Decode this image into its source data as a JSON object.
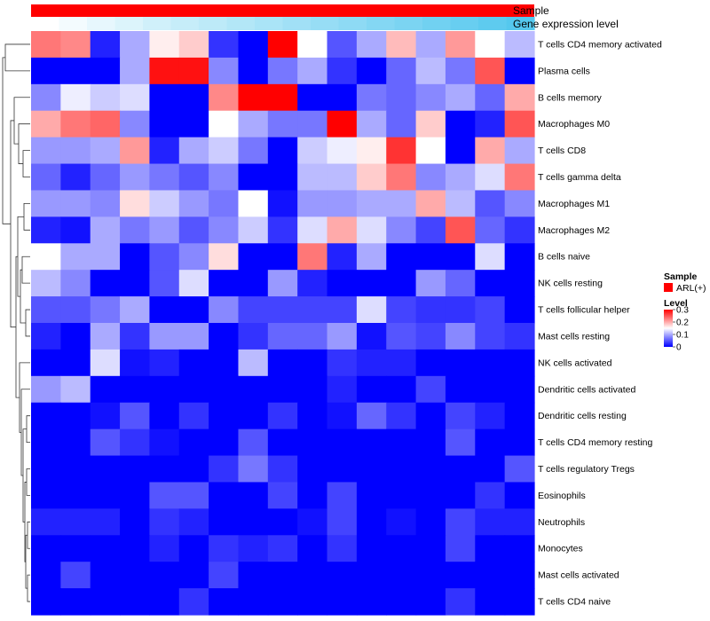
{
  "chart_data": {
    "type": "heatmap",
    "title": "",
    "annotations": [
      {
        "name": "Sample",
        "label": "Sample"
      },
      {
        "name": "Gene expression level",
        "label": "Gene expression level"
      }
    ],
    "sample_groups": [
      "ARL(+)"
    ],
    "sample_colors": [
      "#ff0000"
    ],
    "gene_expression_levels": [
      0.0,
      0.05,
      0.1,
      0.15,
      0.2,
      0.24,
      0.28,
      0.32,
      0.36,
      0.4,
      0.44,
      0.48,
      0.52,
      0.56,
      0.6,
      0.64,
      0.68,
      0.72
    ],
    "rows": [
      "T cells CD4 memory activated",
      "Plasma cells",
      "B cells memory",
      "Macrophages M0",
      "T cells CD8",
      "T cells gamma delta",
      "Macrophages M1",
      "Macrophages M2",
      "B cells naive",
      "NK cells resting",
      "T cells follicular helper",
      "Mast cells resting",
      "NK cells activated",
      "Dendritic cells activated",
      "Dendritic cells resting",
      "T cells CD4 memory resting",
      "T cells regulatory  Tregs",
      "Eosinophils",
      "Neutrophils",
      "Monocytes",
      "Mast cells activated",
      "T cells CD4 naive"
    ],
    "values": [
      [
        0.23,
        0.22,
        0.02,
        0.1,
        0.16,
        0.18,
        0.03,
        0.0,
        0.3,
        0.15,
        0.05,
        0.1,
        0.19,
        0.1,
        0.21,
        0.15,
        0.11
      ],
      [
        0.0,
        0.0,
        0.0,
        0.1,
        0.29,
        0.29,
        0.08,
        0.0,
        0.07,
        0.1,
        0.03,
        0.0,
        0.06,
        0.11,
        0.07,
        0.25,
        0.0
      ],
      [
        0.08,
        0.14,
        0.12,
        0.13,
        0.0,
        0.0,
        0.22,
        0.3,
        0.3,
        0.0,
        0.0,
        0.07,
        0.06,
        0.08,
        0.1,
        0.06,
        0.2
      ],
      [
        0.2,
        0.23,
        0.24,
        0.08,
        0.0,
        0.0,
        0.15,
        0.1,
        0.07,
        0.07,
        0.3,
        0.1,
        0.06,
        0.18,
        0.0,
        0.02,
        0.25
      ],
      [
        0.09,
        0.09,
        0.1,
        0.21,
        0.02,
        0.1,
        0.12,
        0.07,
        0.0,
        0.12,
        0.14,
        0.16,
        0.27,
        0.15,
        0.0,
        0.2,
        0.1
      ],
      [
        0.06,
        0.02,
        0.06,
        0.09,
        0.07,
        0.05,
        0.08,
        0.0,
        0.0,
        0.11,
        0.11,
        0.18,
        0.23,
        0.08,
        0.1,
        0.13,
        0.23
      ],
      [
        0.09,
        0.09,
        0.08,
        0.17,
        0.12,
        0.09,
        0.07,
        0.15,
        0.01,
        0.09,
        0.09,
        0.1,
        0.1,
        0.2,
        0.11,
        0.05,
        0.08
      ],
      [
        0.02,
        0.01,
        0.1,
        0.07,
        0.09,
        0.05,
        0.08,
        0.12,
        0.03,
        0.13,
        0.2,
        0.13,
        0.08,
        0.04,
        0.25,
        0.06,
        0.03
      ],
      [
        0.15,
        0.1,
        0.1,
        0.0,
        0.05,
        0.08,
        0.17,
        0.0,
        0.0,
        0.23,
        0.02,
        0.1,
        0.0,
        0.0,
        0.0,
        0.13,
        0.0
      ],
      [
        0.11,
        0.08,
        0.0,
        0.0,
        0.05,
        0.13,
        0.0,
        0.0,
        0.09,
        0.02,
        0.0,
        0.0,
        0.0,
        0.09,
        0.06,
        0.0,
        0.0
      ],
      [
        0.05,
        0.05,
        0.07,
        0.1,
        0.0,
        0.0,
        0.08,
        0.04,
        0.04,
        0.04,
        0.04,
        0.13,
        0.04,
        0.03,
        0.03,
        0.04,
        0.0
      ],
      [
        0.02,
        0.0,
        0.1,
        0.03,
        0.09,
        0.09,
        0.0,
        0.03,
        0.06,
        0.06,
        0.09,
        0.01,
        0.05,
        0.04,
        0.08,
        0.04,
        0.03
      ],
      [
        0.0,
        0.0,
        0.13,
        0.01,
        0.02,
        0.0,
        0.0,
        0.11,
        0.0,
        0.0,
        0.03,
        0.02,
        0.02,
        0.0,
        0.0,
        0.0,
        0.0
      ],
      [
        0.09,
        0.11,
        0.0,
        0.0,
        0.0,
        0.0,
        0.0,
        0.0,
        0.0,
        0.0,
        0.02,
        0.0,
        0.0,
        0.04,
        0.0,
        0.0,
        0.0
      ],
      [
        0.0,
        0.0,
        0.01,
        0.05,
        0.0,
        0.03,
        0.0,
        0.0,
        0.03,
        0.0,
        0.01,
        0.06,
        0.03,
        0.0,
        0.04,
        0.02,
        0.0
      ],
      [
        0.0,
        0.0,
        0.05,
        0.03,
        0.01,
        0.0,
        0.0,
        0.05,
        0.0,
        0.0,
        0.0,
        0.0,
        0.0,
        0.0,
        0.05,
        0.0,
        0.0
      ],
      [
        0.0,
        0.0,
        0.0,
        0.0,
        0.0,
        0.0,
        0.03,
        0.07,
        0.03,
        0.0,
        0.0,
        0.0,
        0.0,
        0.0,
        0.0,
        0.0,
        0.05
      ],
      [
        0.0,
        0.0,
        0.0,
        0.0,
        0.05,
        0.05,
        0.0,
        0.0,
        0.04,
        0.0,
        0.04,
        0.0,
        0.0,
        0.0,
        0.0,
        0.03,
        0.0
      ],
      [
        0.02,
        0.02,
        0.02,
        0.0,
        0.03,
        0.02,
        0.0,
        0.0,
        0.0,
        0.01,
        0.04,
        0.0,
        0.01,
        0.0,
        0.04,
        0.02,
        0.02
      ],
      [
        0.0,
        0.0,
        0.0,
        0.0,
        0.02,
        0.0,
        0.03,
        0.02,
        0.03,
        0.0,
        0.03,
        0.0,
        0.0,
        0.0,
        0.04,
        0.0,
        0.0
      ],
      [
        0.0,
        0.04,
        0.0,
        0.0,
        0.0,
        0.0,
        0.04,
        0.0,
        0.0,
        0.0,
        0.0,
        0.0,
        0.0,
        0.0,
        0.0,
        0.0,
        0.0
      ],
      [
        0.0,
        0.0,
        0.0,
        0.0,
        0.0,
        0.03,
        0.0,
        0.0,
        0.0,
        0.0,
        0.0,
        0.0,
        0.0,
        0.0,
        0.03,
        0.0,
        0.0
      ]
    ],
    "color_scale": {
      "min": 0,
      "mid": 0.15,
      "max": 0.3,
      "low_color": "#0000ff",
      "mid_color": "#ffffff",
      "high_color": "#ff0000"
    },
    "legend": {
      "sample_title": "Sample",
      "sample_entry": "ARL(+)",
      "level_title": "Level",
      "level_ticks": [
        {
          "value": 0.3,
          "label": "0.3"
        },
        {
          "value": 0.2,
          "label": "0.2"
        },
        {
          "value": 0.1,
          "label": "0.1"
        },
        {
          "value": 0.0,
          "label": "0"
        }
      ]
    },
    "dendrogram": "rows",
    "placement": "legend right"
  }
}
